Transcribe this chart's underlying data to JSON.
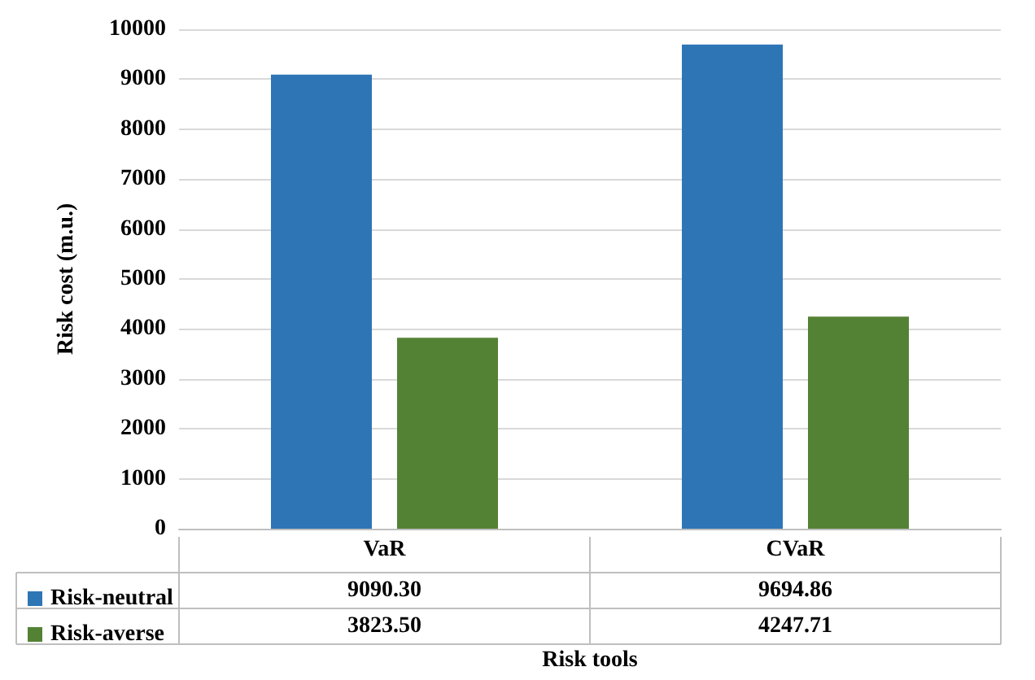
{
  "chart_data": {
    "type": "bar",
    "ylabel": "Risk cost (m.u.)",
    "xlabel": "Risk tools",
    "categories": [
      "VaR",
      "CVaR"
    ],
    "series": [
      {
        "name": "Risk-neutral",
        "color": "#2e75b6",
        "values": [
          9090.3,
          9694.86
        ],
        "value_labels": [
          "9090.30",
          "9694.86"
        ]
      },
      {
        "name": "Risk-averse",
        "color": "#548235",
        "values": [
          3823.5,
          4247.71
        ],
        "value_labels": [
          "3823.50",
          "4247.71"
        ]
      }
    ],
    "ylim": [
      0,
      10000
    ],
    "yticks": [
      0,
      1000,
      2000,
      3000,
      4000,
      5000,
      6000,
      7000,
      8000,
      9000,
      10000
    ],
    "grid": "y",
    "legend": "bottom left"
  }
}
